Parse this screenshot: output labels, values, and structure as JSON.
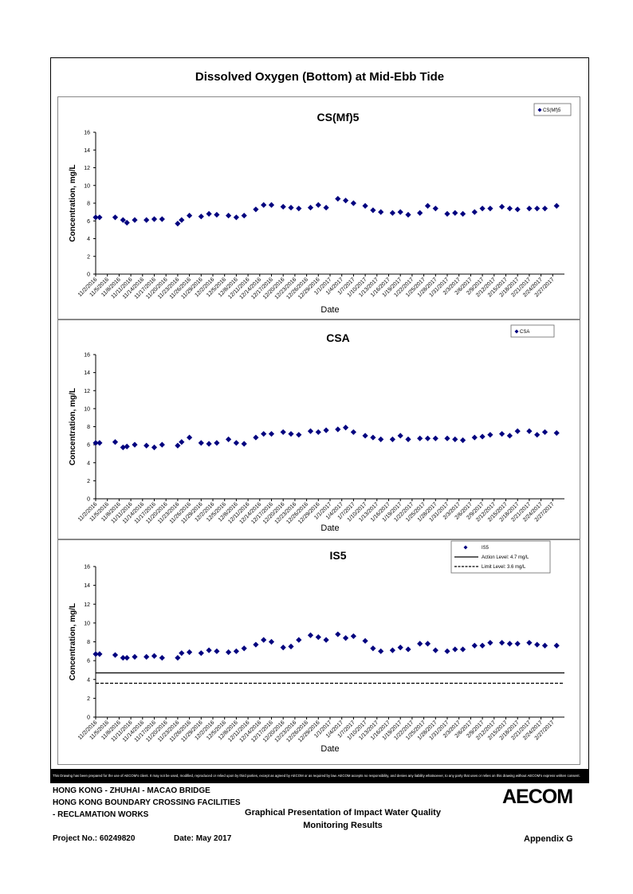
{
  "page_title": "Dissolved Oxygen (Bottom) at Mid-Ebb Tide",
  "disclaimer": "This Drawing has been prepared for the use of AECOM's client. It may not be used, modified, reproduced or relied upon by third parties, except as agreed by AECOM or as required by law. AECOM accepts no responsibility, and denies any liability whatsoever, to any party that uses or relies on this drawing without AECOM's express written consent.",
  "footer": {
    "line1": "HONG KONG - ZHUHAI - MACAO BRIDGE",
    "line2": "HONG KONG BOUNDARY CROSSING FACILITIES",
    "line3": "- RECLAMATION WORKS",
    "center1": "Graphical Presentation of Impact Water Quality",
    "center2": "Monitoring Results",
    "project": "Project No.: 60249820",
    "date": "Date: May 2017",
    "appendix": "Appendix G",
    "logo": "AECOM"
  },
  "chart_data": [
    {
      "type": "scatter",
      "title": "CS(Mf)5",
      "xlabel": "Date",
      "ylabel": "Concentration, mg/L",
      "ylim": [
        0,
        16
      ],
      "yticks": [
        "0",
        "2",
        "4",
        "6",
        "8",
        "10",
        "12",
        "14",
        "16"
      ],
      "xticks": [
        "11/2/2016",
        "11/5/2016",
        "11/8/2016",
        "11/11/2016",
        "11/14/2016",
        "11/17/2016",
        "11/20/2016",
        "11/23/2016",
        "11/26/2016",
        "11/29/2016",
        "12/2/2016",
        "12/5/2016",
        "12/8/2016",
        "12/11/2016",
        "12/14/2016",
        "12/17/2016",
        "12/20/2016",
        "12/23/2016",
        "12/26/2016",
        "12/29/2016",
        "1/1/2017",
        "1/4/2017",
        "1/7/2017",
        "1/10/2017",
        "1/13/2017",
        "1/16/2017",
        "1/19/2017",
        "1/22/2017",
        "1/25/2017",
        "1/28/2017",
        "1/31/2017",
        "2/3/2017",
        "2/6/2017",
        "2/9/2017",
        "2/12/2017",
        "2/15/2017",
        "2/18/2017",
        "2/21/2017",
        "2/24/2017",
        "2/27/2017"
      ],
      "legend": {
        "position": "top-right",
        "entries": [
          {
            "label": "CS(Mf)5",
            "marker": "diamond"
          }
        ]
      },
      "series": [
        {
          "name": "CS(Mf)5",
          "color": "#00007f",
          "x": [
            "11/2/2016",
            "11/3/2016",
            "11/7/2016",
            "11/9/2016",
            "11/10/2016",
            "11/12/2016",
            "11/15/2016",
            "11/17/2016",
            "11/19/2016",
            "11/23/2016",
            "11/24/2016",
            "11/26/2016",
            "11/29/2016",
            "12/1/2016",
            "12/3/2016",
            "12/6/2016",
            "12/8/2016",
            "12/10/2016",
            "12/13/2016",
            "12/15/2016",
            "12/17/2016",
            "12/20/2016",
            "12/22/2016",
            "12/24/2016",
            "12/27/2016",
            "12/29/2016",
            "12/31/2016",
            "1/3/2017",
            "1/5/2017",
            "1/7/2017",
            "1/10/2017",
            "1/12/2017",
            "1/14/2017",
            "1/17/2017",
            "1/19/2017",
            "1/21/2017",
            "1/24/2017",
            "1/26/2017",
            "1/28/2017",
            "1/31/2017",
            "2/2/2017",
            "2/4/2017",
            "2/7/2017",
            "2/9/2017",
            "2/11/2017",
            "2/14/2017",
            "2/16/2017",
            "2/18/2017",
            "2/21/2017",
            "2/23/2017",
            "2/25/2017",
            "2/28/2017"
          ],
          "values": [
            6.4,
            6.4,
            6.4,
            6.1,
            5.8,
            6.1,
            6.1,
            6.2,
            6.2,
            5.7,
            6.1,
            6.6,
            6.5,
            6.8,
            6.7,
            6.6,
            6.4,
            6.6,
            7.3,
            7.8,
            7.8,
            7.6,
            7.5,
            7.4,
            7.5,
            7.8,
            7.5,
            8.5,
            8.3,
            8.0,
            7.7,
            7.2,
            7.0,
            6.9,
            7.0,
            6.7,
            6.9,
            7.7,
            7.4,
            6.8,
            6.9,
            6.8,
            7.0,
            7.4,
            7.4,
            7.6,
            7.4,
            7.3,
            7.4,
            7.4,
            7.4,
            7.7
          ]
        }
      ]
    },
    {
      "type": "scatter",
      "title": "CSA",
      "xlabel": "Date",
      "ylabel": "Concentration, mg/L",
      "ylim": [
        0,
        16
      ],
      "yticks": [
        "0",
        "2",
        "4",
        "6",
        "8",
        "10",
        "12",
        "14",
        "16"
      ],
      "xticks": [
        "11/2/2016",
        "11/5/2016",
        "11/8/2016",
        "11/11/2016",
        "11/14/2016",
        "11/17/2016",
        "11/20/2016",
        "11/23/2016",
        "11/26/2016",
        "11/29/2016",
        "12/2/2016",
        "12/5/2016",
        "12/8/2016",
        "12/11/2016",
        "12/14/2016",
        "12/17/2016",
        "12/20/2016",
        "12/23/2016",
        "12/26/2016",
        "12/29/2016",
        "1/1/2017",
        "1/4/2017",
        "1/7/2017",
        "1/10/2017",
        "1/13/2017",
        "1/16/2017",
        "1/19/2017",
        "1/22/2017",
        "1/25/2017",
        "1/28/2017",
        "1/31/2017",
        "2/3/2017",
        "2/6/2017",
        "2/9/2017",
        "2/12/2017",
        "2/15/2017",
        "2/18/2017",
        "2/21/2017",
        "2/24/2017",
        "2/27/2017"
      ],
      "legend": {
        "position": "top-right",
        "entries": [
          {
            "label": "CSA",
            "marker": "diamond"
          }
        ]
      },
      "series": [
        {
          "name": "CSA",
          "color": "#00007f",
          "x": [
            "11/2/2016",
            "11/3/2016",
            "11/7/2016",
            "11/9/2016",
            "11/10/2016",
            "11/12/2016",
            "11/15/2016",
            "11/17/2016",
            "11/19/2016",
            "11/23/2016",
            "11/24/2016",
            "11/26/2016",
            "11/29/2016",
            "12/1/2016",
            "12/3/2016",
            "12/6/2016",
            "12/8/2016",
            "12/10/2016",
            "12/13/2016",
            "12/15/2016",
            "12/17/2016",
            "12/20/2016",
            "12/22/2016",
            "12/24/2016",
            "12/27/2016",
            "12/29/2016",
            "12/31/2016",
            "1/3/2017",
            "1/5/2017",
            "1/7/2017",
            "1/10/2017",
            "1/12/2017",
            "1/14/2017",
            "1/17/2017",
            "1/19/2017",
            "1/21/2017",
            "1/24/2017",
            "1/26/2017",
            "1/28/2017",
            "1/31/2017",
            "2/2/2017",
            "2/4/2017",
            "2/7/2017",
            "2/9/2017",
            "2/11/2017",
            "2/14/2017",
            "2/16/2017",
            "2/18/2017",
            "2/21/2017",
            "2/23/2017",
            "2/25/2017",
            "2/28/2017"
          ],
          "values": [
            6.2,
            6.2,
            6.3,
            5.7,
            5.8,
            6.0,
            5.9,
            5.7,
            6.0,
            5.9,
            6.3,
            6.8,
            6.2,
            6.1,
            6.2,
            6.6,
            6.2,
            6.1,
            6.8,
            7.2,
            7.2,
            7.4,
            7.2,
            7.1,
            7.5,
            7.4,
            7.6,
            7.7,
            7.9,
            7.4,
            7.0,
            6.8,
            6.6,
            6.6,
            7.0,
            6.6,
            6.7,
            6.7,
            6.7,
            6.7,
            6.6,
            6.5,
            6.8,
            6.9,
            7.1,
            7.2,
            7.0,
            7.5,
            7.5,
            7.1,
            7.4,
            7.3
          ]
        }
      ]
    },
    {
      "type": "scatter",
      "title": "IS5",
      "xlabel": "Date",
      "ylabel": "Concentration, mg/L",
      "ylim": [
        0,
        16
      ],
      "yticks": [
        "0",
        "2",
        "4",
        "6",
        "8",
        "10",
        "12",
        "14",
        "16"
      ],
      "xticks": [
        "11/2/2016",
        "11/5/2016",
        "11/8/2016",
        "11/11/2016",
        "11/14/2016",
        "11/17/2016",
        "11/20/2016",
        "11/23/2016",
        "11/26/2016",
        "11/29/2016",
        "12/2/2016",
        "12/5/2016",
        "12/8/2016",
        "12/11/2016",
        "12/14/2016",
        "12/17/2016",
        "12/20/2016",
        "12/23/2016",
        "12/26/2016",
        "12/29/2016",
        "1/1/2017",
        "1/4/2017",
        "1/7/2017",
        "1/10/2017",
        "1/13/2017",
        "1/16/2017",
        "1/19/2017",
        "1/22/2017",
        "1/25/2017",
        "1/28/2017",
        "1/31/2017",
        "2/3/2017",
        "2/6/2017",
        "2/9/2017",
        "2/12/2017",
        "2/15/2017",
        "2/18/2017",
        "2/21/2017",
        "2/24/2017",
        "2/27/2017"
      ],
      "legend": {
        "position": "top-right",
        "entries": [
          {
            "label": "IS5",
            "marker": "diamond"
          },
          {
            "label": "Action Level: 4.7 mg/L",
            "marker": "solid-line"
          },
          {
            "label": "Limit Level: 3.6 mg/L",
            "marker": "dashed-line"
          }
        ]
      },
      "reference_lines": [
        {
          "name": "Action Level: 4.7 mg/L",
          "value": 4.7,
          "style": "solid"
        },
        {
          "name": "Limit Level: 3.6 mg/L",
          "value": 3.6,
          "style": "dashed"
        }
      ],
      "series": [
        {
          "name": "IS5",
          "color": "#00007f",
          "x": [
            "11/2/2016",
            "11/3/2016",
            "11/7/2016",
            "11/9/2016",
            "11/10/2016",
            "11/12/2016",
            "11/15/2016",
            "11/17/2016",
            "11/19/2016",
            "11/23/2016",
            "11/24/2016",
            "11/26/2016",
            "11/29/2016",
            "12/1/2016",
            "12/3/2016",
            "12/6/2016",
            "12/8/2016",
            "12/10/2016",
            "12/13/2016",
            "12/15/2016",
            "12/17/2016",
            "12/20/2016",
            "12/22/2016",
            "12/24/2016",
            "12/27/2016",
            "12/29/2016",
            "12/31/2016",
            "1/3/2017",
            "1/5/2017",
            "1/7/2017",
            "1/10/2017",
            "1/12/2017",
            "1/14/2017",
            "1/17/2017",
            "1/19/2017",
            "1/21/2017",
            "1/24/2017",
            "1/26/2017",
            "1/28/2017",
            "1/31/2017",
            "2/2/2017",
            "2/4/2017",
            "2/7/2017",
            "2/9/2017",
            "2/11/2017",
            "2/14/2017",
            "2/16/2017",
            "2/18/2017",
            "2/21/2017",
            "2/23/2017",
            "2/25/2017",
            "2/28/2017"
          ],
          "values": [
            6.7,
            6.7,
            6.6,
            6.3,
            6.3,
            6.4,
            6.4,
            6.5,
            6.3,
            6.3,
            6.8,
            6.9,
            6.8,
            7.1,
            7.0,
            6.9,
            7.0,
            7.3,
            7.7,
            8.2,
            8.0,
            7.4,
            7.5,
            8.2,
            8.7,
            8.5,
            8.2,
            8.8,
            8.4,
            8.6,
            8.1,
            7.3,
            7.0,
            7.1,
            7.4,
            7.2,
            7.8,
            7.8,
            7.1,
            7.0,
            7.2,
            7.2,
            7.6,
            7.6,
            7.9,
            7.9,
            7.8,
            7.8,
            7.9,
            7.7,
            7.6,
            7.6
          ]
        }
      ]
    }
  ]
}
